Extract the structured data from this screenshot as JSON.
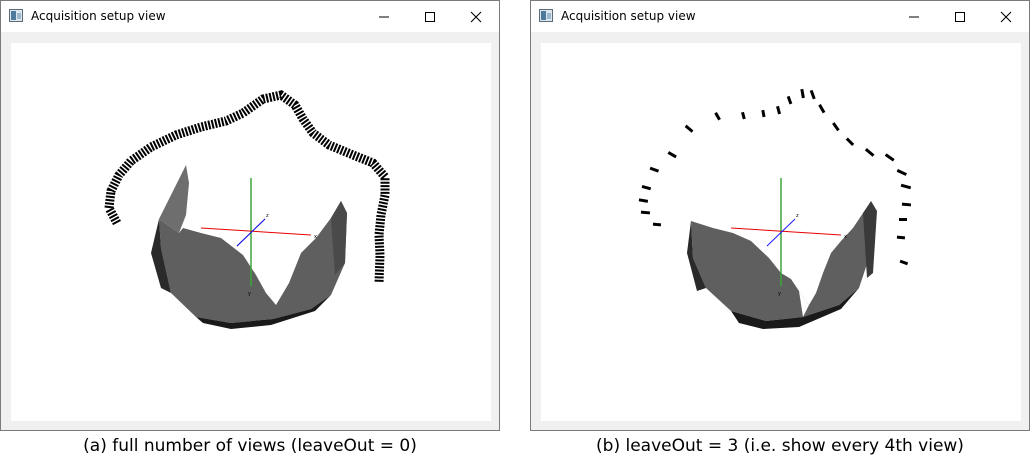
{
  "windows": [
    {
      "title": "Acquisition setup view",
      "controls": {
        "minimize": "minimize",
        "maximize": "maximize",
        "close": "close"
      },
      "axis_labels": {
        "x": "x",
        "y": "y",
        "z": "z"
      },
      "caption": "(a) full number of views (leaveOut = 0)"
    },
    {
      "title": "Acquisition setup view",
      "controls": {
        "minimize": "minimize",
        "maximize": "maximize",
        "close": "close"
      },
      "axis_labels": {
        "x": "x",
        "y": "y",
        "z": "z"
      },
      "caption": "(b) leaveOut = 3 (i.e. show every 4th view)"
    }
  ],
  "colors": {
    "x_axis": "#e60000",
    "y_axis": "#3aa63a",
    "z_axis": "#1a1aff",
    "mesh": "#5f5f5f",
    "camera_marker": "#000000"
  },
  "icons": [
    "app-window-icon",
    "minimize-icon",
    "maximize-icon",
    "close-icon"
  ]
}
